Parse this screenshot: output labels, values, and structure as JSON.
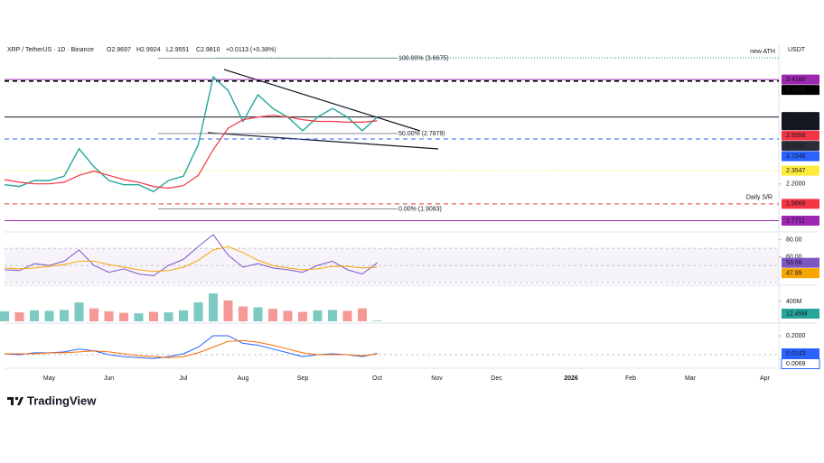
{
  "chart_data": {
    "type": "line",
    "symbol": "XRP / TetherUS · 1D · Binance",
    "ohlc": [
      "O2.9697",
      "H2.9924",
      "L2.9551",
      "C2.9810"
    ],
    "change": "+0.0113 (+0.38%)",
    "currency": "USDT",
    "branding": "TradingView",
    "categories": [
      null,
      null,
      null,
      "May",
      null,
      null,
      null,
      "Jun",
      null,
      null,
      null,
      null,
      "Jul",
      null,
      null,
      null,
      "Aug",
      null,
      null,
      null,
      "Sep",
      null,
      null,
      null,
      null,
      "Oct",
      null,
      null,
      null,
      "Nov",
      null,
      null,
      null,
      "Dec",
      null,
      null,
      null,
      null,
      "2026",
      null,
      null,
      null,
      "Feb",
      null,
      null,
      null,
      "Mar",
      null,
      null,
      null,
      null,
      "Apr",
      null
    ],
    "values": [
      2.19,
      2.17,
      2.24,
      2.24,
      2.29,
      2.61,
      2.4,
      2.24,
      2.19,
      2.19,
      2.11,
      2.24,
      2.29,
      2.66,
      3.45,
      3.29,
      2.93,
      3.24,
      3.08,
      2.98,
      2.82,
      2.98,
      3.08,
      2.98,
      2.82,
      2.981,
      null,
      null,
      null,
      null,
      null,
      null,
      null,
      null,
      null,
      null,
      null,
      null,
      null,
      null,
      null,
      null,
      null,
      null,
      null,
      null,
      null,
      null,
      null,
      null,
      null,
      null,
      null
    ],
    "color": "#26a69a",
    "sma": {
      "color": "#f23645",
      "values": [
        2.25,
        2.22,
        2.2,
        2.2,
        2.22,
        2.3,
        2.35,
        2.3,
        2.25,
        2.22,
        2.17,
        2.15,
        2.18,
        2.3,
        2.6,
        2.85,
        2.95,
        2.98,
        3.0,
        2.98,
        2.95,
        2.93,
        2.93,
        2.92,
        2.92,
        2.9356,
        null,
        null,
        null,
        null,
        null,
        null,
        null,
        null,
        null,
        null,
        null,
        null,
        null,
        null,
        null,
        null,
        null,
        null,
        null,
        null,
        null,
        null,
        null,
        null,
        null,
        null,
        null
      ]
    },
    "ylim": [
      1.66,
      3.82
    ],
    "yticks": [
      {
        "value": 2.2,
        "label": "2.2000"
      }
    ],
    "levels": [
      {
        "value": 3.418,
        "label": "3.4180",
        "color": "#9c27b0",
        "style": "solid"
      },
      {
        "value": 3.4,
        "label": "3.4000",
        "color": "#000000",
        "style": "dashed"
      },
      {
        "value": 2.981,
        "label": "2.9810",
        "color": "#131722",
        "style": "solid",
        "countdown": "20:58:50"
      },
      {
        "value": 2.9356,
        "label": "2.9356",
        "color": "#f23645",
        "style": "none"
      },
      {
        "value": 2.9337,
        "label": "2.9337",
        "color": "#2a2e39",
        "style": "none"
      },
      {
        "value": 2.7245,
        "label": "2.7245",
        "color": "#2962ff",
        "style": "dashed"
      },
      {
        "value": 2.3547,
        "label": "2.3547",
        "color": "#ffeb3b",
        "style": "dotted"
      },
      {
        "value": 1.9669,
        "label": "1.9669",
        "color": "#f23645",
        "style": "dashed",
        "note": "Daily S/R"
      },
      {
        "value": 1.7711,
        "label": "1.7711",
        "color": "#9c27b0",
        "style": "solid"
      }
    ],
    "fib": [
      {
        "value": 3.6675,
        "label": "100.00% (3.6675)"
      },
      {
        "value": 2.7879,
        "label": "50.00% (2.7879)"
      },
      {
        "value": 1.9083,
        "label": "0.00% (1.9083)"
      }
    ],
    "annotation": {
      "text": "new ATH",
      "value": 3.67,
      "color": "#089981"
    },
    "rsi": {
      "color": "#7e57c2",
      "values": [
        45,
        44,
        52,
        50,
        55,
        68,
        50,
        42,
        46,
        40,
        38,
        50,
        57,
        72,
        86,
        62,
        48,
        52,
        47,
        45,
        42,
        50,
        55,
        45,
        40,
        53.08,
        null,
        null,
        null,
        null,
        null,
        null,
        null,
        null,
        null,
        null,
        null,
        null,
        null,
        null,
        null,
        null,
        null,
        null,
        null,
        null,
        null,
        null,
        null,
        null,
        null,
        null,
        null
      ],
      "ma_color": "#f7a600",
      "ma": [
        47,
        46,
        47,
        49,
        51,
        55,
        55,
        51,
        48,
        45,
        43,
        44,
        48,
        56,
        68,
        72,
        65,
        56,
        50,
        47,
        45,
        46,
        49,
        49,
        47,
        47.99,
        null,
        null,
        null,
        null,
        null,
        null,
        null,
        null,
        null,
        null,
        null,
        null,
        null,
        null,
        null,
        null,
        null,
        null,
        null,
        null,
        null,
        null,
        null,
        null,
        null,
        null,
        null
      ],
      "ylim": [
        28,
        88
      ],
      "yticks": [
        {
          "value": 80,
          "label": "80.00"
        },
        {
          "value": 60,
          "label": "60.00"
        }
      ]
    },
    "volume": {
      "values": [
        200,
        180,
        220,
        210,
        230,
        380,
        260,
        200,
        170,
        160,
        190,
        180,
        220,
        380,
        560,
        420,
        300,
        280,
        250,
        210,
        190,
        220,
        230,
        210,
        260,
        12.45,
        null,
        null,
        null,
        null,
        null,
        null,
        null,
        null,
        null,
        null,
        null,
        null,
        null,
        null,
        null,
        null,
        null,
        null,
        null,
        null,
        null,
        null,
        null,
        null,
        null,
        null,
        null
      ],
      "last_label": "12.45M",
      "ylim": [
        0,
        690
      ],
      "yticks": [
        {
          "value": 400,
          "label": "400M"
        }
      ]
    },
    "macd": {
      "color": "#2962ff",
      "values": [
        0.01,
        0.0,
        0.02,
        0.02,
        0.03,
        0.06,
        0.04,
        0.0,
        -0.02,
        -0.03,
        -0.04,
        -0.02,
        0.01,
        0.08,
        0.2,
        0.2,
        0.12,
        0.1,
        0.06,
        0.02,
        -0.02,
        0.0,
        0.01,
        0.0,
        -0.02,
        0.0143,
        null,
        null,
        null,
        null,
        null,
        null,
        null,
        null,
        null,
        null,
        null,
        null,
        null,
        null,
        null,
        null,
        null,
        null,
        null,
        null,
        null,
        null,
        null,
        null,
        null,
        null,
        null
      ],
      "signal_color": "#ff6d00",
      "signal": [
        0.01,
        0.01,
        0.01,
        0.02,
        0.02,
        0.03,
        0.04,
        0.03,
        0.01,
        -0.01,
        -0.02,
        -0.03,
        -0.02,
        0.02,
        0.08,
        0.14,
        0.15,
        0.13,
        0.1,
        0.06,
        0.02,
        0.0,
        0.0,
        0.0,
        -0.01,
        0.0069,
        null,
        null,
        null,
        null,
        null,
        null,
        null,
        null,
        null,
        null,
        null,
        null,
        null,
        null,
        null,
        null,
        null,
        null,
        null,
        null,
        null,
        null,
        null,
        null,
        null,
        null,
        null
      ],
      "ylim": [
        -0.114,
        0.314
      ],
      "yticks": [
        {
          "value": 0.2,
          "label": "0.2000"
        }
      ]
    }
  }
}
